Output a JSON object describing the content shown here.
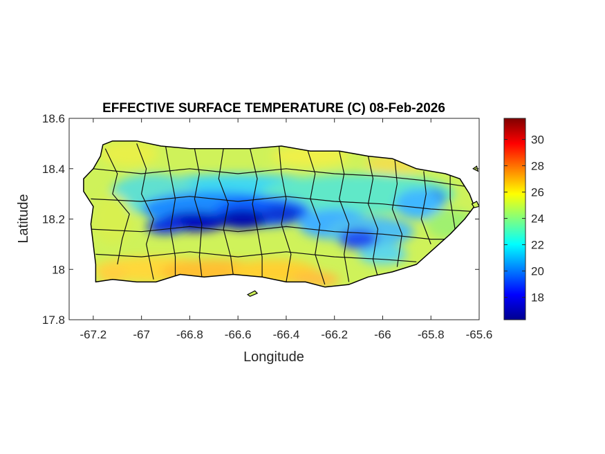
{
  "chart_data": {
    "type": "heatmap",
    "title": "EFFECTIVE SURFACE TEMPERATURE (C) 08-Feb-2026",
    "xlabel": "Longitude",
    "ylabel": "Latitude",
    "xlim": [
      -67.3,
      -65.6
    ],
    "ylim": [
      17.8,
      18.6
    ],
    "x_ticks": [
      -67.2,
      -67,
      -66.8,
      -66.6,
      -66.4,
      -66.2,
      -66,
      -65.8,
      -65.6
    ],
    "x_tick_labels": [
      "-67.2",
      "-67",
      "-66.8",
      "-66.6",
      "-66.4",
      "-66.2",
      "-66",
      "-65.8",
      "-65.6"
    ],
    "y_ticks": [
      17.8,
      18,
      18.2,
      18.4,
      18.6
    ],
    "y_tick_labels": [
      "17.8",
      "18",
      "18.2",
      "18.4",
      "18.6"
    ],
    "colorbar": {
      "colormap": "jet",
      "range": [
        16.3,
        31.6
      ],
      "ticks": [
        18,
        20,
        22,
        24,
        26,
        28,
        30
      ],
      "tick_labels": [
        "18",
        "20",
        "22",
        "24",
        "26",
        "28",
        "30"
      ]
    },
    "grid": false,
    "colors": {
      "jet_low": "#00008f",
      "jet_blue": "#0000ff",
      "jet_cyan": "#00ffff",
      "jet_yellow": "#ffff00",
      "jet_red": "#ff0000",
      "jet_high": "#800000",
      "border": "#000000"
    }
  }
}
